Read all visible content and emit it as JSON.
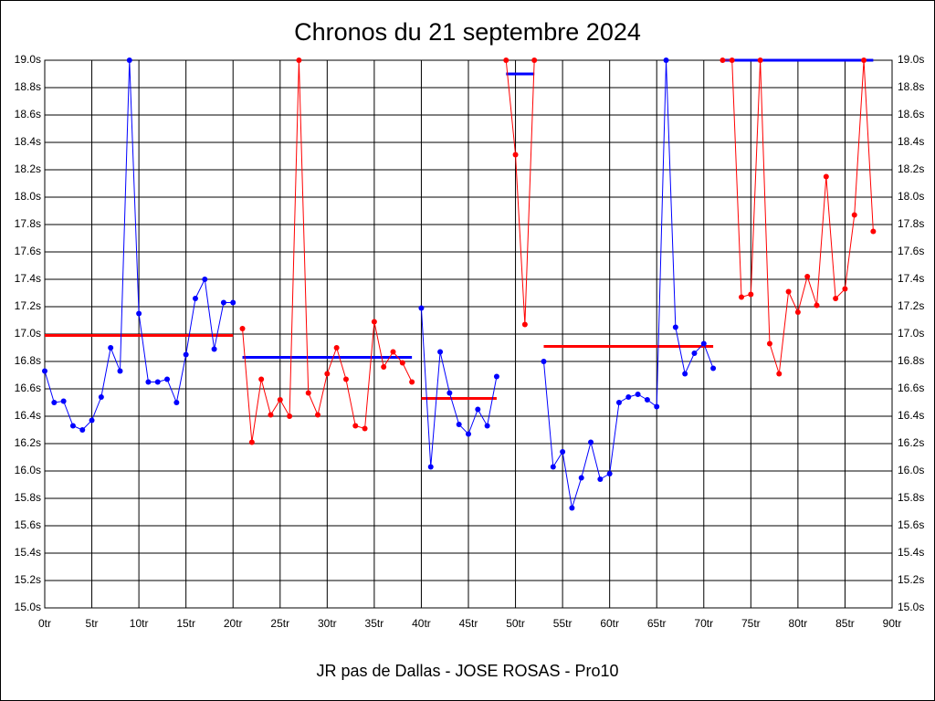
{
  "chart_data": {
    "type": "line",
    "title": "Chronos du 21 septembre 2024",
    "x_label": "JR pas de Dallas - JOSE ROSAS - Pro10",
    "xlim": [
      0,
      90
    ],
    "xticks": [
      {
        "value": 0,
        "label": "0tr"
      },
      {
        "value": 5,
        "label": "5tr"
      },
      {
        "value": 10,
        "label": "10tr"
      },
      {
        "value": 15,
        "label": "15tr"
      },
      {
        "value": 20,
        "label": "20tr"
      },
      {
        "value": 25,
        "label": "25tr"
      },
      {
        "value": 30,
        "label": "30tr"
      },
      {
        "value": 35,
        "label": "35tr"
      },
      {
        "value": 40,
        "label": "40tr"
      },
      {
        "value": 45,
        "label": "45tr"
      },
      {
        "value": 50,
        "label": "50tr"
      },
      {
        "value": 55,
        "label": "55tr"
      },
      {
        "value": 60,
        "label": "60tr"
      },
      {
        "value": 65,
        "label": "65tr"
      },
      {
        "value": 70,
        "label": "70tr"
      },
      {
        "value": 75,
        "label": "75tr"
      },
      {
        "value": 80,
        "label": "80tr"
      },
      {
        "value": 85,
        "label": "85tr"
      },
      {
        "value": 90,
        "label": "90tr"
      }
    ],
    "ylim": [
      15.0,
      19.0
    ],
    "yticks": [
      {
        "value": 15.0,
        "label": "15.0s"
      },
      {
        "value": 15.2,
        "label": "15.2s"
      },
      {
        "value": 15.4,
        "label": "15.4s"
      },
      {
        "value": 15.6,
        "label": "15.6s"
      },
      {
        "value": 15.8,
        "label": "15.8s"
      },
      {
        "value": 16.0,
        "label": "16.0s"
      },
      {
        "value": 16.2,
        "label": "16.2s"
      },
      {
        "value": 16.4,
        "label": "16.4s"
      },
      {
        "value": 16.6,
        "label": "16.6s"
      },
      {
        "value": 16.8,
        "label": "16.8s"
      },
      {
        "value": 17.0,
        "label": "17.0s"
      },
      {
        "value": 17.2,
        "label": "17.2s"
      },
      {
        "value": 17.4,
        "label": "17.4s"
      },
      {
        "value": 17.6,
        "label": "17.6s"
      },
      {
        "value": 17.8,
        "label": "17.8s"
      },
      {
        "value": 18.0,
        "label": "18.0s"
      },
      {
        "value": 18.2,
        "label": "18.2s"
      },
      {
        "value": 18.4,
        "label": "18.4s"
      },
      {
        "value": 18.6,
        "label": "18.6s"
      },
      {
        "value": 18.8,
        "label": "18.8s"
      },
      {
        "value": 19.0,
        "label": "19.0s"
      }
    ],
    "grid": true,
    "series": [
      {
        "color": "#0000ff",
        "x": [
          0,
          1,
          2,
          3,
          4,
          5,
          6,
          7,
          8,
          9,
          10,
          11,
          12,
          13,
          14,
          15,
          16,
          17,
          18,
          19,
          20
        ],
        "values": [
          16.73,
          16.5,
          16.51,
          16.33,
          16.3,
          16.37,
          16.54,
          16.9,
          16.73,
          19.0,
          17.15,
          16.65,
          16.65,
          16.67,
          16.5,
          16.85,
          17.26,
          17.4,
          16.89,
          17.23,
          17.23
        ],
        "mean": {
          "value": 16.99,
          "color": "#ff0000"
        }
      },
      {
        "color": "#ff0000",
        "x": [
          21,
          22,
          23,
          24,
          25,
          26,
          27,
          28,
          29,
          30,
          31,
          32,
          33,
          34,
          35,
          36,
          37,
          38,
          39
        ],
        "values": [
          17.04,
          16.21,
          16.67,
          16.41,
          16.52,
          16.4,
          19.0,
          16.57,
          16.41,
          16.71,
          16.9,
          16.67,
          16.33,
          16.31,
          17.09,
          16.76,
          16.87,
          16.79,
          16.65
        ],
        "mean": {
          "value": 16.83,
          "color": "#0000ff"
        }
      },
      {
        "color": "#0000ff",
        "x": [
          40,
          41,
          42,
          43,
          44,
          45,
          46,
          47,
          48
        ],
        "values": [
          17.19,
          16.03,
          16.87,
          16.57,
          16.34,
          16.27,
          16.45,
          16.33,
          16.69
        ],
        "mean": {
          "value": 16.53,
          "color": "#ff0000"
        }
      },
      {
        "color": "#ff0000",
        "x": [
          49,
          50,
          51,
          52
        ],
        "values": [
          19.0,
          18.31,
          17.07,
          19.0
        ],
        "mean": {
          "value": 18.9,
          "color": "#0000ff"
        }
      },
      {
        "color": "#0000ff",
        "x": [
          53,
          54,
          55,
          56,
          57,
          58,
          59,
          60,
          61,
          62,
          63,
          64,
          65,
          66,
          67,
          68,
          69,
          70,
          71
        ],
        "values": [
          16.8,
          16.03,
          16.14,
          15.73,
          15.95,
          16.21,
          15.94,
          15.98,
          16.5,
          16.54,
          16.56,
          16.52,
          16.47,
          19.0,
          17.05,
          16.71,
          16.86,
          16.93,
          16.75
        ],
        "mean": {
          "value": 16.91,
          "color": "#ff0000"
        }
      },
      {
        "color": "#ff0000",
        "x": [
          72,
          73,
          74,
          75,
          76,
          77,
          78,
          79,
          80,
          81,
          82,
          83,
          84,
          85,
          86,
          87,
          88
        ],
        "values": [
          19.0,
          19.0,
          17.27,
          17.29,
          19.0,
          16.93,
          16.71,
          17.31,
          17.16,
          17.42,
          17.21,
          18.15,
          17.26,
          17.33,
          17.87,
          19.0,
          17.75
        ],
        "mean": {
          "value": 19.0,
          "color": "#0000ff"
        }
      }
    ]
  }
}
